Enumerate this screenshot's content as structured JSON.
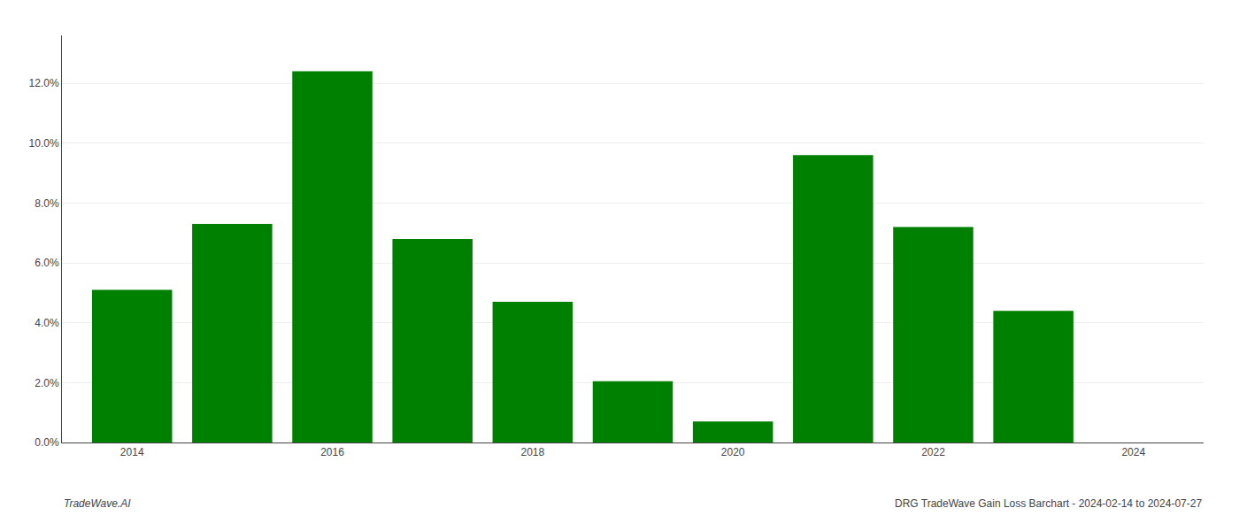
{
  "chart_data": {
    "type": "bar",
    "x": [
      2014,
      2015,
      2016,
      2017,
      2018,
      2019,
      2020,
      2021,
      2022,
      2023
    ],
    "values": [
      0.051,
      0.073,
      0.124,
      0.068,
      0.047,
      0.0205,
      0.007,
      0.096,
      0.072,
      0.044
    ],
    "color": "#008000",
    "xlim": [
      2013.3,
      2024.7
    ],
    "xticks": [
      2014,
      2016,
      2018,
      2020,
      2022,
      2024
    ],
    "ylim": [
      0,
      0.136
    ],
    "yticks": [
      {
        "value": 0.0,
        "label": "0.0%"
      },
      {
        "value": 0.02,
        "label": "2.0%"
      },
      {
        "value": 0.04,
        "label": "4.0%"
      },
      {
        "value": 0.06,
        "label": "6.0%"
      },
      {
        "value": 0.08,
        "label": "8.0%"
      },
      {
        "value": 0.1,
        "label": "10.0%"
      },
      {
        "value": 0.12,
        "label": "12.0%"
      }
    ],
    "grid": true,
    "annotations": [
      "TradeWave.AI",
      "DRG TradeWave Gain Loss Barchart - 2024-02-14 to 2024-07-27"
    ]
  }
}
